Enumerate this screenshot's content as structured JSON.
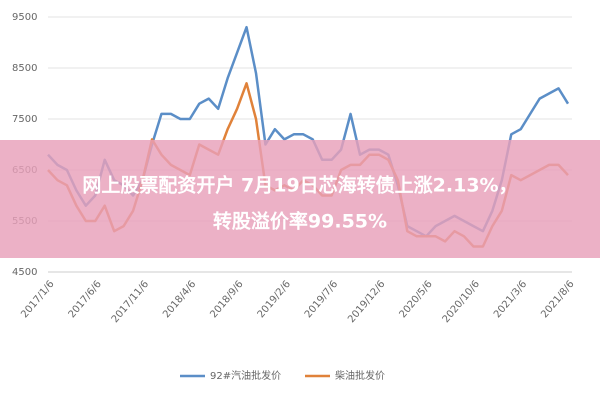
{
  "chart_data": {
    "type": "line",
    "categories": [
      "2017/1/6",
      null,
      null,
      null,
      null,
      "2017/6/6",
      null,
      null,
      null,
      null,
      "2017/11/6",
      null,
      null,
      null,
      null,
      "2018/4/6",
      null,
      null,
      null,
      null,
      "2018/9/6",
      null,
      null,
      null,
      null,
      "2019/2/6",
      null,
      null,
      null,
      null,
      "2019/7/6",
      null,
      null,
      null,
      null,
      "2019/12/6",
      null,
      null,
      null,
      null,
      "2020/5/6",
      null,
      null,
      null,
      null,
      "2020/10/6",
      null,
      null,
      null,
      null,
      "2021/3/6",
      null,
      null,
      null,
      null,
      "2021/8/6"
    ],
    "series": [
      {
        "name": "92#汽油批发价",
        "color": "#5b8ec7",
        "values": [
          6800,
          6600,
          6500,
          6100,
          5800,
          6000,
          6700,
          6300,
          6200,
          6000,
          6300,
          7000,
          7600,
          7600,
          7500,
          7500,
          7800,
          7900,
          7700,
          8300,
          8800,
          9300,
          8400,
          7000,
          7300,
          7100,
          7200,
          7200,
          7100,
          6700,
          6700,
          6900,
          7600,
          6800,
          6900,
          6900,
          6800,
          6200,
          5400,
          5300,
          5200,
          5400,
          5500,
          5600,
          5500,
          5400,
          5300,
          5700,
          6300,
          7200,
          7300,
          7600,
          7900,
          8000,
          8100,
          7800
        ]
      },
      {
        "name": "柴油批发价",
        "color": "#e0823a",
        "values": [
          6500,
          6300,
          6200,
          5800,
          5500,
          5500,
          5800,
          5300,
          5400,
          5700,
          6300,
          7100,
          6800,
          6600,
          6500,
          6400,
          7000,
          6900,
          6800,
          7300,
          7700,
          8200,
          7500,
          6200,
          6100,
          6200,
          6100,
          6300,
          6200,
          6000,
          6000,
          6500,
          6600,
          6600,
          6800,
          6800,
          6700,
          6300,
          5300,
          5200,
          5200,
          5200,
          5100,
          5300,
          5200,
          5000,
          5000,
          5400,
          5700,
          6400,
          6300,
          6400,
          6500,
          6600,
          6600,
          6400
        ]
      }
    ],
    "ylim": [
      4500,
      9500
    ],
    "yticks": [
      4500,
      5500,
      6500,
      7500,
      8500,
      9500
    ],
    "grid": true,
    "overlay_text": [
      "网上股票配资开户 7月19日芯海转债上涨2.13%，",
      "转股溢价率99.55%"
    ]
  }
}
